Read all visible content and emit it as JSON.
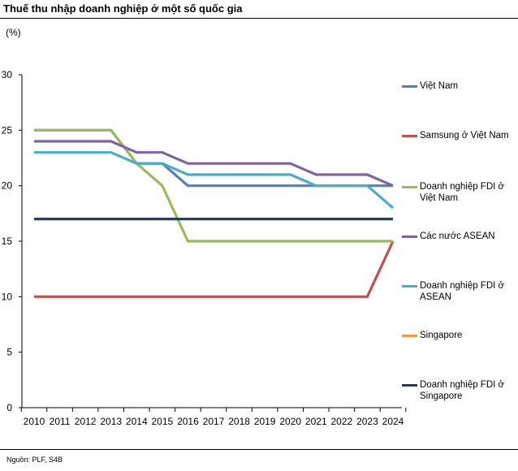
{
  "title": "Thuế thu nhập doanh nghiệp ở một số quốc gia",
  "unit": "(%)",
  "source": "Nguồn: PLF, S4B",
  "chart_data": {
    "type": "line",
    "title": "Thuế thu nhập doanh nghiệp ở một số quốc gia",
    "ylabel": "(%)",
    "xlabel": "",
    "ylim": [
      0,
      30
    ],
    "yticks": [
      0,
      5,
      10,
      15,
      20,
      25,
      30
    ],
    "grid": false,
    "legend_position": "right",
    "x": [
      "2010",
      "2011",
      "2012",
      "2013",
      "2014",
      "2015",
      "2016",
      "2017",
      "2018",
      "2019",
      "2020",
      "2021",
      "2022",
      "2023",
      "2024"
    ],
    "series": [
      {
        "name": "Việt Nam",
        "color": "#4f81bd",
        "values": [
          25,
          25,
          25,
          25,
          22,
          22,
          20,
          20,
          20,
          20,
          20,
          20,
          20,
          20,
          20
        ]
      },
      {
        "name": "Samsung ở Việt Nam",
        "color": "#c0504d",
        "values": [
          10,
          10,
          10,
          10,
          10,
          10,
          10,
          10,
          10,
          10,
          10,
          10,
          10,
          10,
          15
        ]
      },
      {
        "name": "Doanh nghiệp FDI ở Việt Nam",
        "color": "#9bbb59",
        "values": [
          25,
          25,
          25,
          25,
          22,
          20,
          15,
          15,
          15,
          15,
          15,
          15,
          15,
          15,
          15
        ]
      },
      {
        "name": "Các nước ASEAN",
        "color": "#8064a2",
        "values": [
          24,
          24,
          24,
          24,
          23,
          23,
          22,
          22,
          22,
          22,
          22,
          21,
          21,
          21,
          20
        ]
      },
      {
        "name": "Doanh nghiệp FDI ở ASEAN",
        "color": "#4bacc6",
        "values": [
          23,
          23,
          23,
          23,
          22,
          22,
          21,
          21,
          21,
          21,
          21,
          20,
          20,
          20,
          18
        ]
      },
      {
        "name": "Singapore",
        "color": "#f79646",
        "values": [
          17,
          17,
          17,
          17,
          17,
          17,
          17,
          17,
          17,
          17,
          17,
          17,
          17,
          17,
          17
        ]
      },
      {
        "name": "Doanh nghiệp FDI ở Singapore",
        "color": "#1f3d5c",
        "values": [
          17,
          17,
          17,
          17,
          17,
          17,
          17,
          17,
          17,
          17,
          17,
          17,
          17,
          17,
          17
        ]
      }
    ]
  }
}
